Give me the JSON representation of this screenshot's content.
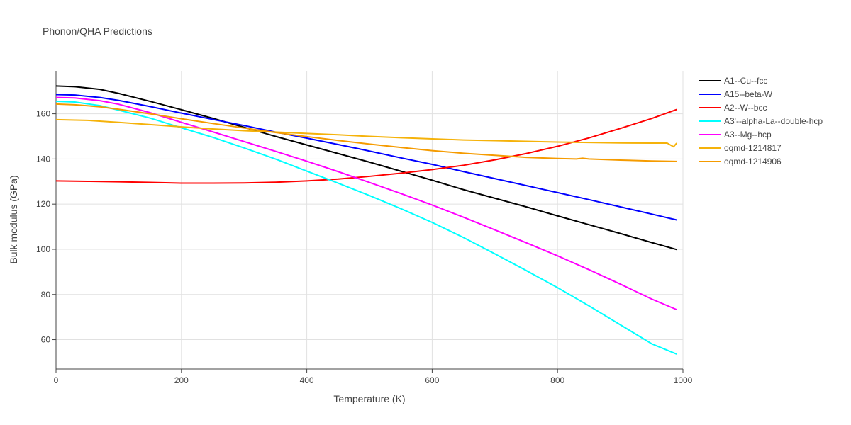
{
  "chart_data": {
    "type": "line",
    "title": "Phonon/QHA Predictions",
    "xlabel": "Temperature (K)",
    "ylabel": "Bulk modulus (GPa)",
    "xlim": [
      0,
      1000
    ],
    "ylim": [
      47,
      179
    ],
    "xticks": [
      0,
      200,
      400,
      600,
      800,
      1000
    ],
    "yticks": [
      60,
      80,
      100,
      120,
      140,
      160
    ],
    "grid": true,
    "legend_position": "top-right",
    "series": [
      {
        "name": "A1--Cu--fcc",
        "color": "#000000",
        "x": [
          0,
          30,
          70,
          100,
          150,
          200,
          250,
          300,
          350,
          400,
          450,
          500,
          550,
          600,
          650,
          700,
          750,
          800,
          850,
          900,
          950,
          990
        ],
        "y": [
          172.3,
          172.0,
          170.8,
          169.0,
          165.5,
          161.8,
          158.0,
          154.0,
          150.0,
          146.2,
          142.4,
          138.6,
          134.6,
          130.6,
          126.4,
          122.6,
          118.8,
          114.8,
          110.9,
          107.0,
          103.0,
          99.9
        ]
      },
      {
        "name": "A15--beta-W",
        "color": "#0000ff",
        "x": [
          0,
          30,
          70,
          100,
          150,
          200,
          250,
          300,
          350,
          400,
          450,
          500,
          550,
          600,
          650,
          700,
          750,
          800,
          850,
          900,
          950,
          990
        ],
        "y": [
          168.5,
          168.3,
          167.2,
          165.9,
          163.2,
          160.3,
          157.5,
          154.8,
          151.9,
          149.2,
          146.4,
          143.5,
          140.5,
          137.6,
          134.4,
          131.3,
          128.2,
          125.1,
          122.0,
          118.8,
          115.6,
          113.0
        ]
      },
      {
        "name": "A2--W--bcc",
        "color": "#ff0000",
        "x": [
          0,
          50,
          100,
          150,
          200,
          250,
          300,
          350,
          400,
          450,
          500,
          550,
          600,
          650,
          700,
          750,
          800,
          850,
          900,
          950,
          990
        ],
        "y": [
          130.3,
          130.1,
          129.9,
          129.6,
          129.3,
          129.3,
          129.4,
          129.7,
          130.3,
          131.1,
          132.3,
          133.7,
          135.3,
          137.2,
          139.6,
          142.4,
          145.6,
          149.3,
          153.5,
          157.9,
          161.9
        ]
      },
      {
        "name": "A3'--alpha-La--double-hcp",
        "color": "#00ffff",
        "x": [
          0,
          30,
          70,
          100,
          150,
          200,
          250,
          300,
          350,
          400,
          450,
          500,
          550,
          600,
          650,
          700,
          750,
          800,
          850,
          900,
          950,
          990
        ],
        "y": [
          165.5,
          165.2,
          163.6,
          161.6,
          158.1,
          153.8,
          149.6,
          144.9,
          140.0,
          134.6,
          129.3,
          123.8,
          118.0,
          111.9,
          105.2,
          98.0,
          90.6,
          83.0,
          75.0,
          66.6,
          58.2,
          53.6
        ]
      },
      {
        "name": "A3--Mg--hcp",
        "color": "#ff00ff",
        "x": [
          0,
          30,
          70,
          100,
          150,
          200,
          250,
          300,
          350,
          400,
          450,
          500,
          550,
          600,
          650,
          700,
          750,
          800,
          850,
          900,
          950,
          990
        ],
        "y": [
          167.2,
          167.0,
          165.8,
          164.2,
          160.5,
          156.2,
          152.0,
          147.7,
          143.4,
          139.0,
          134.4,
          129.6,
          124.7,
          119.6,
          114.2,
          108.6,
          102.9,
          97.1,
          91.0,
          84.6,
          78.0,
          73.3
        ]
      },
      {
        "name": "oqmd-1214817",
        "color": "#f5b20a",
        "x": [
          0,
          50,
          100,
          150,
          200,
          250,
          300,
          350,
          400,
          450,
          500,
          550,
          600,
          650,
          700,
          750,
          800,
          850,
          900,
          950,
          975,
          985,
          990
        ],
        "y": [
          157.4,
          157.1,
          156.2,
          155.2,
          154.2,
          153.3,
          152.5,
          151.9,
          151.3,
          150.7,
          150.0,
          149.4,
          148.9,
          148.4,
          148.1,
          147.8,
          147.5,
          147.3,
          147.1,
          147.0,
          147.0,
          145.4,
          147.0
        ]
      },
      {
        "name": "oqmd-1214906",
        "color": "#f59b00",
        "x": [
          0,
          30,
          70,
          100,
          150,
          200,
          250,
          300,
          350,
          400,
          450,
          500,
          550,
          600,
          650,
          700,
          750,
          800,
          830,
          840,
          850,
          900,
          950,
          990
        ],
        "y": [
          164.3,
          164.0,
          163.1,
          162.0,
          160.0,
          157.8,
          155.7,
          153.7,
          151.7,
          149.9,
          148.2,
          146.6,
          145.1,
          143.7,
          142.5,
          141.6,
          140.7,
          140.2,
          140.0,
          140.3,
          140.0,
          139.5,
          139.1,
          138.9
        ]
      }
    ]
  }
}
